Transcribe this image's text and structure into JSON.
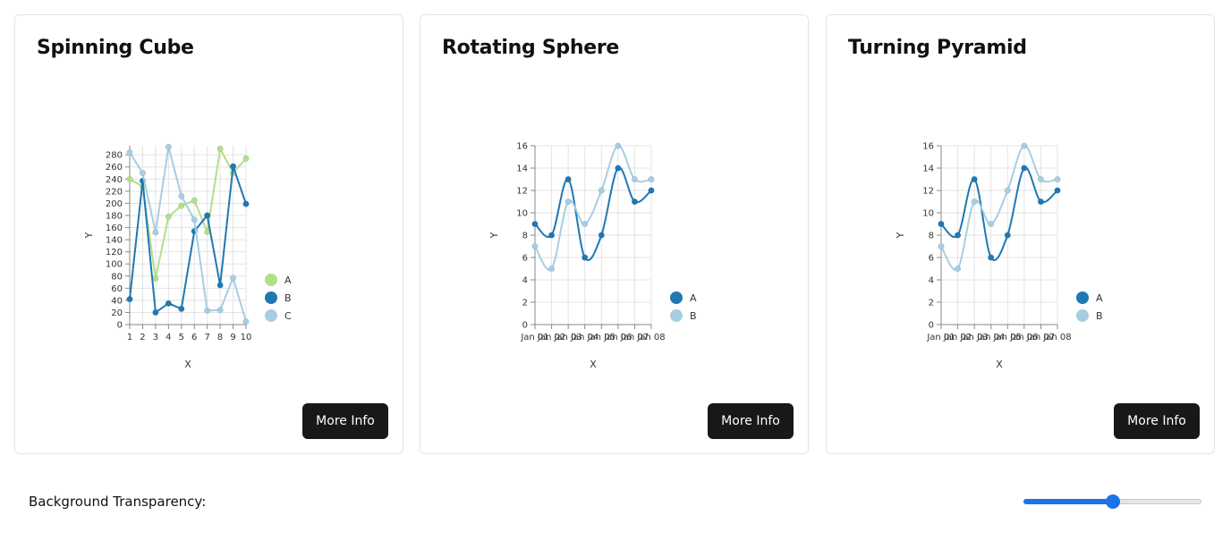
{
  "cards": [
    {
      "title": "Spinning Cube",
      "button_label": "More Info",
      "chart_data": {
        "type": "line",
        "xlabel": "X",
        "ylabel": "Y",
        "x": [
          1,
          2,
          3,
          4,
          5,
          6,
          7,
          8,
          9,
          10
        ],
        "x_ticks": [
          "1",
          "2",
          "3",
          "4",
          "5",
          "6",
          "7",
          "8",
          "9",
          "10"
        ],
        "ylim": [
          0,
          295
        ],
        "y_ticks": [
          0,
          20,
          40,
          60,
          80,
          100,
          120,
          140,
          160,
          180,
          200,
          220,
          240,
          260,
          280
        ],
        "curve": "linear",
        "series": [
          {
            "name": "A",
            "color": "#b2df8a",
            "values": [
              240,
              228,
              76,
              178,
              196,
              205,
              153,
              290,
              250,
              274
            ]
          },
          {
            "name": "B",
            "color": "#1f78b4",
            "values": [
              42,
              237,
              20,
              35,
              26,
              154,
              180,
              65,
              261,
              199
            ]
          },
          {
            "name": "C",
            "color": "#a6cee3",
            "values": [
              284,
              250,
              152,
              293,
              212,
              173,
              23,
              24,
              77,
              5
            ]
          }
        ]
      }
    },
    {
      "title": "Rotating Sphere",
      "button_label": "More Info",
      "chart_data": {
        "type": "line",
        "xlabel": "X",
        "ylabel": "Y",
        "x": [
          "Jan 01",
          "Jan 02",
          "Jan 03",
          "Jan 04",
          "Jan 05",
          "Jan 06",
          "Jan 07",
          "Jan 08"
        ],
        "x_ticks": [
          "Jan 01",
          "Jan 02",
          "Jan 03",
          "Jan 04",
          "Jan 05",
          "Jan 06",
          "Jan 07",
          "Jan 08"
        ],
        "ylim": [
          0,
          16
        ],
        "y_ticks": [
          0,
          2,
          4,
          6,
          8,
          10,
          12,
          14,
          16
        ],
        "curve": "smooth",
        "series": [
          {
            "name": "A",
            "color": "#1f78b4",
            "values": [
              9,
              8,
              13,
              6,
              8,
              14,
              11,
              12
            ]
          },
          {
            "name": "B",
            "color": "#a6cee3",
            "values": [
              7,
              5,
              11,
              9,
              12,
              16,
              13,
              13
            ]
          }
        ]
      }
    },
    {
      "title": "Turning Pyramid",
      "button_label": "More Info",
      "chart_data": {
        "type": "line",
        "xlabel": "X",
        "ylabel": "Y",
        "x": [
          "Jan 01",
          "Jan 02",
          "Jan 03",
          "Jan 04",
          "Jan 05",
          "Jan 06",
          "Jan 07",
          "Jan 08"
        ],
        "x_ticks": [
          "Jan 01",
          "Jan 02",
          "Jan 03",
          "Jan 04",
          "Jan 05",
          "Jan 06",
          "Jan 07",
          "Jan 08"
        ],
        "ylim": [
          0,
          16
        ],
        "y_ticks": [
          0,
          2,
          4,
          6,
          8,
          10,
          12,
          14,
          16
        ],
        "curve": "smooth",
        "series": [
          {
            "name": "A",
            "color": "#1f78b4",
            "values": [
              9,
              8,
              13,
              6,
              8,
              14,
              11,
              12
            ]
          },
          {
            "name": "B",
            "color": "#a6cee3",
            "values": [
              7,
              5,
              11,
              9,
              12,
              16,
              13,
              13
            ]
          }
        ]
      }
    }
  ],
  "transparency": {
    "label": "Background Transparency:",
    "value": 0.5,
    "accent_color": "#1a73e8"
  }
}
